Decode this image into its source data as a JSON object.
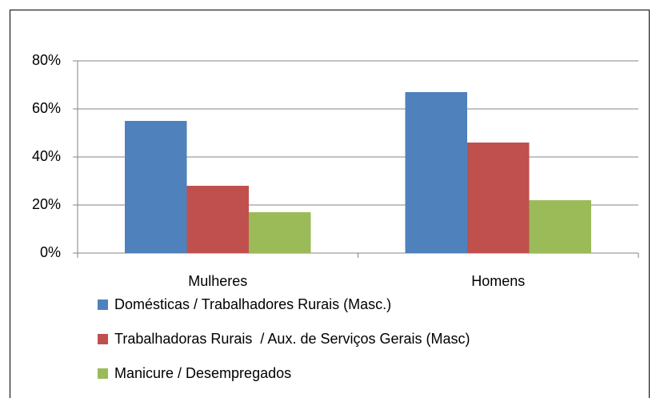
{
  "chart_data": {
    "type": "bar",
    "categories": [
      "Mulheres",
      "Homens"
    ],
    "series": [
      {
        "name": "Domésticas / Trabalhadores Rurais (Masc.)",
        "color": "#4f81bd",
        "values": [
          55,
          67
        ]
      },
      {
        "name": "Trabalhadoras Rurais  / Aux. de Serviços Gerais (Masc)",
        "color": "#c0504d",
        "values": [
          28,
          46
        ]
      },
      {
        "name": "Manicure / Desempregados",
        "color": "#9bbb59",
        "values": [
          17,
          22
        ]
      }
    ],
    "ylim": [
      0,
      80
    ],
    "yticks": [
      {
        "value": 0,
        "label": "0%"
      },
      {
        "value": 20,
        "label": "20%"
      },
      {
        "value": 40,
        "label": "40%"
      },
      {
        "value": 60,
        "label": "60%"
      },
      {
        "value": 80,
        "label": "80%"
      }
    ],
    "grid": true,
    "legend": "bottom"
  }
}
